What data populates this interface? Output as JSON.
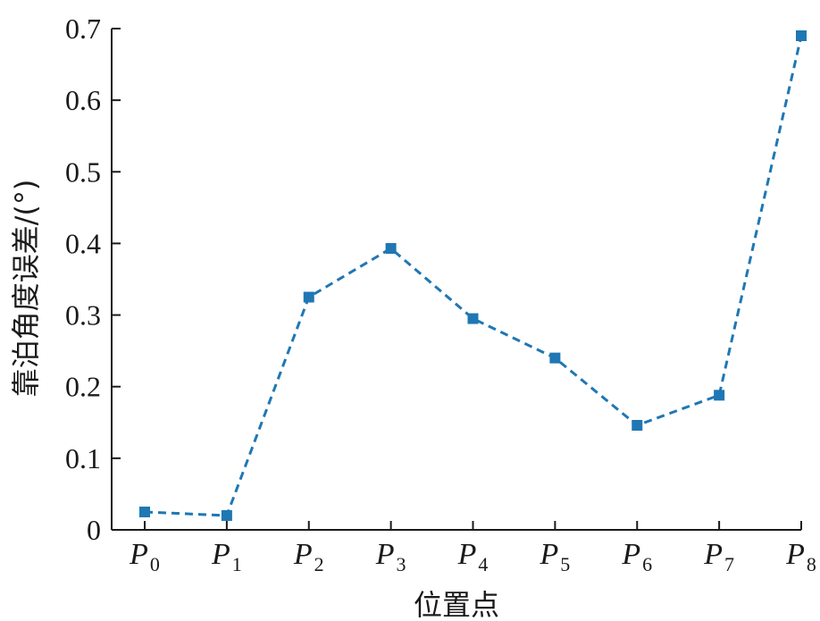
{
  "chart_data": {
    "type": "line",
    "categories": [
      {
        "main": "P",
        "sub": "0"
      },
      {
        "main": "P",
        "sub": "1"
      },
      {
        "main": "P",
        "sub": "2"
      },
      {
        "main": "P",
        "sub": "3"
      },
      {
        "main": "P",
        "sub": "4"
      },
      {
        "main": "P",
        "sub": "5"
      },
      {
        "main": "P",
        "sub": "6"
      },
      {
        "main": "P",
        "sub": "7"
      },
      {
        "main": "P",
        "sub": "8"
      }
    ],
    "series": [
      {
        "values": [
          0.025,
          0.02,
          0.325,
          0.393,
          0.295,
          0.24,
          0.146,
          0.188,
          0.69
        ]
      }
    ],
    "xlabel": "位置点",
    "ylabel": "靠泊角度误差/(°)",
    "ylim": [
      0,
      0.7
    ],
    "yticks": [
      "0",
      "0.1",
      "0.2",
      "0.3",
      "0.4",
      "0.5",
      "0.6",
      "0.7"
    ],
    "line_style": "dashed",
    "marker": "square",
    "color": "#1f77b4",
    "grid": false,
    "legend": "none"
  }
}
